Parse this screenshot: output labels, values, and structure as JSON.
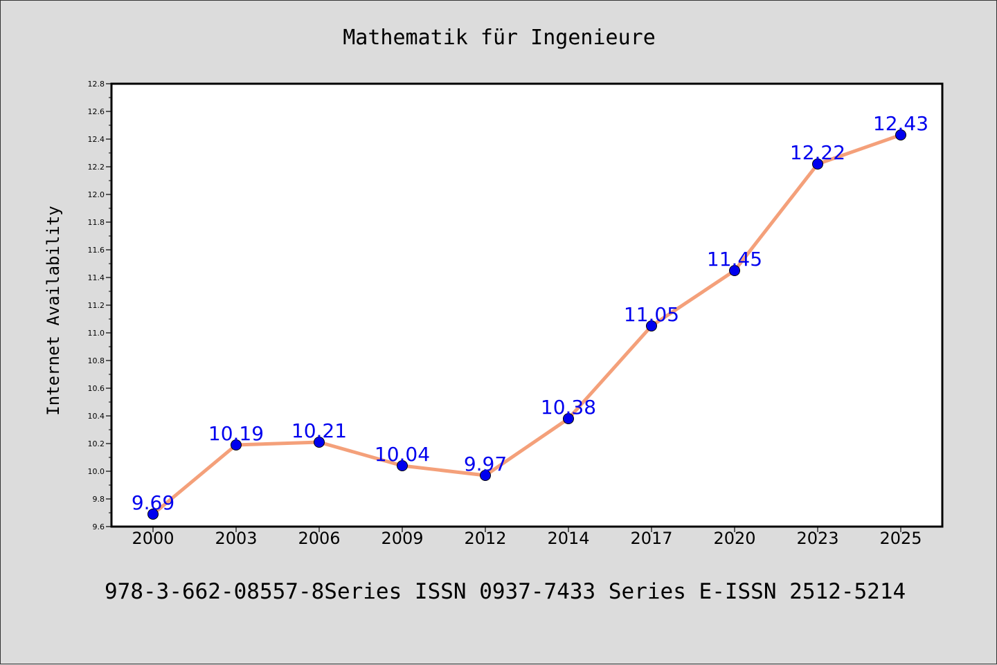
{
  "chart_data": {
    "type": "line",
    "title": "Mathematik für Ingenieure",
    "ylabel": "Internet Availability",
    "xlabel": "",
    "categories": [
      "2000",
      "2003",
      "2006",
      "2009",
      "2012",
      "2014",
      "2017",
      "2020",
      "2023",
      "2025"
    ],
    "series": [
      {
        "values": [
          9.69,
          10.19,
          10.21,
          10.04,
          9.97,
          10.38,
          11.05,
          11.45,
          12.22,
          12.43
        ],
        "labels": [
          "9.69",
          "10.19",
          "10.21",
          "10.04",
          "9.97",
          "10.38",
          "11.05",
          "11.45",
          "12.22",
          "12.43"
        ],
        "line_color": "#f4a07a",
        "marker_color": "#0000ee"
      }
    ],
    "ylim": [
      9.6,
      12.8
    ],
    "yticks": [
      "9.6",
      "9.8",
      "10.0",
      "10.2",
      "10.4",
      "10.6",
      "10.8",
      "11.0",
      "11.2",
      "11.4",
      "11.6",
      "11.8",
      "12.0",
      "12.2",
      "12.4",
      "12.6",
      "12.8"
    ],
    "grid": false,
    "footer": "978-3-662-08557-8Series ISSN 0937-7433 Series E-ISSN 2512-5214",
    "colors": {
      "background": "#dcdcdc",
      "plot_area": "#ffffff",
      "data_label": "#0000ee",
      "text": "#000000"
    }
  }
}
